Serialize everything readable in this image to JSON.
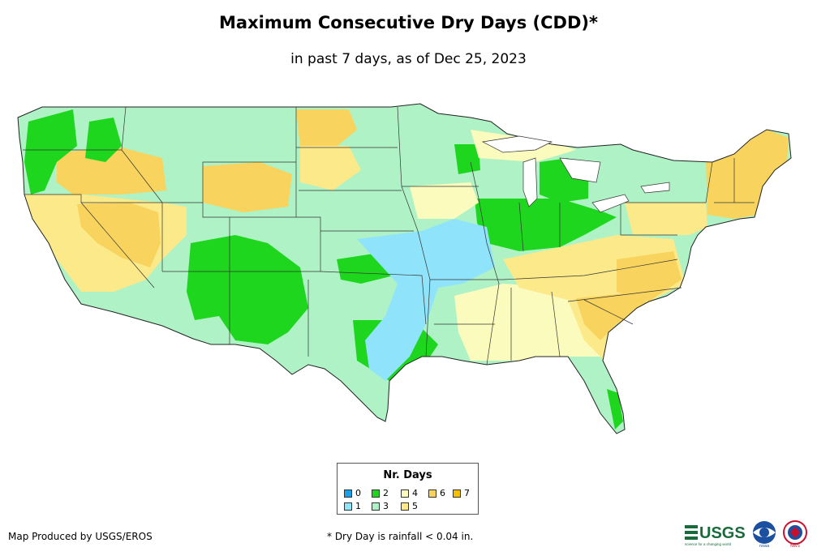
{
  "title": "Maximum Consecutive Dry Days (CDD)*",
  "subtitle": "in past 7 days, as of Dec 25, 2023",
  "legend": {
    "title": "Nr. Days",
    "items": [
      {
        "label": "0",
        "color": "#1a9fe8"
      },
      {
        "label": "1",
        "color": "#8fe3fb"
      },
      {
        "label": "2",
        "color": "#1fd61f"
      },
      {
        "label": "3",
        "color": "#aef2c5"
      },
      {
        "label": "4",
        "color": "#fbfbbd"
      },
      {
        "label": "5",
        "color": "#fbe98a"
      },
      {
        "label": "6",
        "color": "#f8d45e"
      },
      {
        "label": "7",
        "color": "#f5c000"
      }
    ]
  },
  "credit": "Map Produced by USGS/EROS",
  "footnote": "* Dry Day is rainfall < 0.04 in.",
  "logos": {
    "usgs": "USGS",
    "usgs_tagline": "science for a changing world",
    "noaa": "noaa",
    "nws": "NWS"
  }
}
